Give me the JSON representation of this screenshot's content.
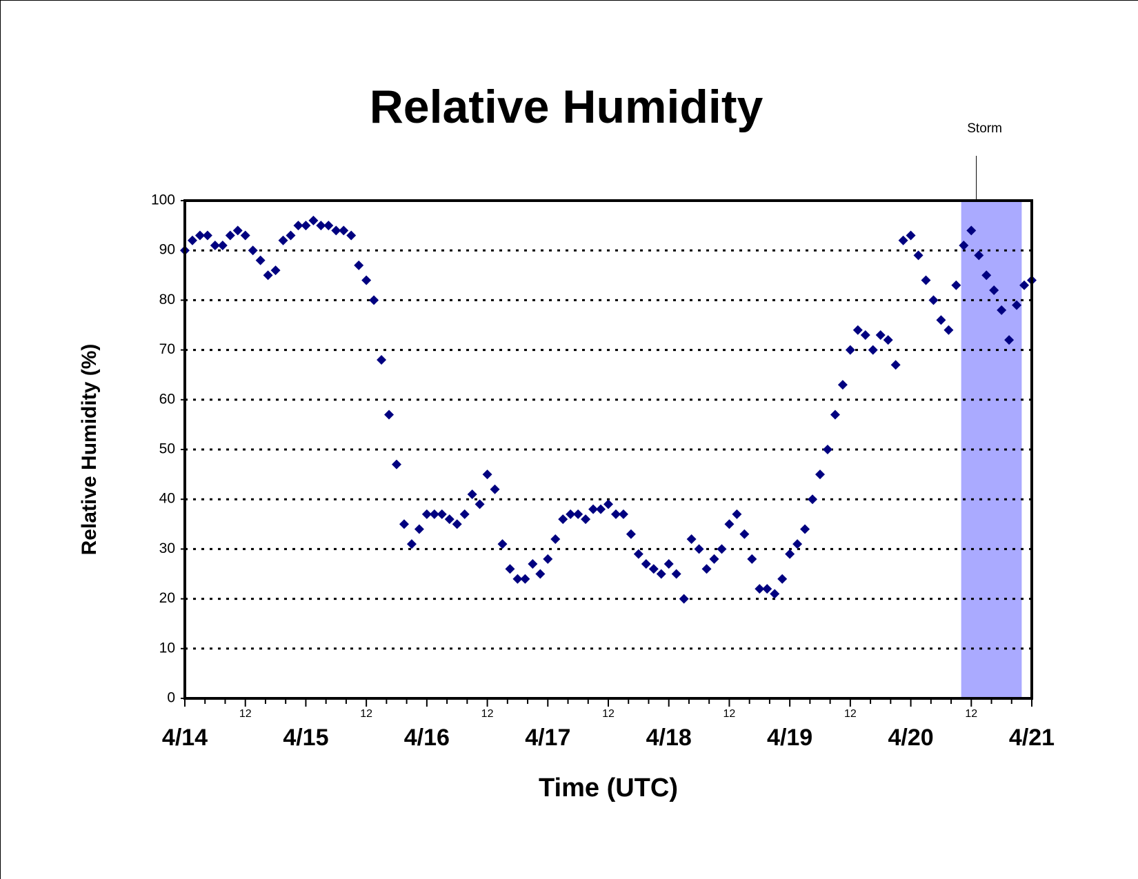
{
  "chart_data": {
    "type": "scatter",
    "title": "Relative Humidity",
    "xlabel": "Time (UTC)",
    "ylabel": "Relative Humidity (%)",
    "color": "#000080",
    "x": [
      0,
      1.5,
      3,
      4.5,
      6,
      7.5,
      9,
      10.5,
      12,
      13.5,
      15,
      16.5,
      18,
      19.5,
      21,
      22.5,
      24,
      25.5,
      27,
      28.5,
      30,
      31.5,
      33,
      34.5,
      36,
      37.5,
      39,
      40.5,
      42,
      43.5,
      45,
      46.5,
      48,
      49.5,
      51,
      52.5,
      54,
      55.5,
      57,
      58.5,
      60,
      61.5,
      63,
      64.5,
      66,
      67.5,
      69,
      70.5,
      72,
      73.5,
      75,
      76.5,
      78,
      79.5,
      81,
      82.5,
      84,
      85.5,
      87,
      88.5,
      90,
      91.5,
      93,
      94.5,
      96,
      97.5,
      99,
      100.5,
      102,
      103.5,
      105,
      106.5,
      108,
      109.5,
      111,
      112.5,
      114,
      115.5,
      117,
      118.5,
      120,
      121.5,
      123,
      124.5,
      126,
      127.5,
      129,
      130.5,
      132,
      133.5,
      135,
      136.5,
      138,
      139.5,
      141,
      142.5,
      144,
      145.5,
      147,
      148.5,
      150,
      151.5,
      153,
      154.5,
      156,
      157.5,
      159,
      160.5,
      162,
      163.5,
      165,
      166.5,
      168
    ],
    "values": [
      90,
      92,
      93,
      93,
      91,
      91,
      93,
      94,
      93,
      90,
      88,
      85,
      86,
      92,
      93,
      95,
      95,
      96,
      95,
      95,
      94,
      94,
      93,
      87,
      84,
      80,
      68,
      57,
      47,
      35,
      31,
      34,
      37,
      37,
      37,
      36,
      35,
      37,
      41,
      39,
      45,
      42,
      31,
      26,
      24,
      24,
      27,
      25,
      28,
      32,
      36,
      37,
      37,
      36,
      38,
      38,
      39,
      37,
      37,
      33,
      29,
      27,
      26,
      25,
      27,
      25,
      20,
      32,
      30,
      26,
      28,
      30,
      35,
      37,
      33,
      28,
      22,
      22,
      21,
      24,
      29,
      31,
      34,
      40,
      45,
      50,
      57,
      63,
      70,
      74,
      73,
      70,
      73,
      72,
      67,
      92,
      93,
      89,
      84,
      80,
      76,
      74,
      83,
      91,
      94,
      89,
      85,
      82,
      78,
      72,
      79,
      83,
      84
    ],
    "xlim": [
      0,
      168
    ],
    "ylim": [
      0,
      100
    ],
    "yticks": [
      0,
      10,
      20,
      30,
      40,
      50,
      60,
      70,
      80,
      90,
      100
    ],
    "xticks": [
      {
        "value": 0,
        "label": "4/14"
      },
      12,
      {
        "value": 24,
        "label": "4/15"
      },
      {
        "value": 36,
        "label": "12"
      },
      {
        "value": 48,
        "label": "4/16"
      },
      {
        "value": 60,
        "label": "12"
      },
      {
        "value": 72,
        "label": "4/17"
      },
      {
        "value": 84,
        "label": "12"
      },
      {
        "value": 96,
        "label": "4/18"
      },
      {
        "value": 108,
        "label": "12"
      },
      {
        "value": 120,
        "label": "4/19"
      },
      {
        "value": 132,
        "label": "12"
      },
      {
        "value": 144,
        "label": "4/20"
      },
      {
        "value": 156,
        "label": "12"
      },
      {
        "value": 168,
        "label": "4/21"
      }
    ],
    "xminor_ticks": [
      4,
      8,
      16,
      20,
      28,
      32,
      40,
      44,
      52,
      56,
      64,
      68,
      76,
      80,
      88,
      92,
      100,
      104,
      112,
      116,
      124,
      128,
      136,
      140,
      148,
      152,
      160,
      164
    ],
    "grid": true,
    "shaded_region": {
      "x": [
        154,
        166
      ],
      "color": "#aaaaff"
    },
    "annotation": {
      "text": "Storm",
      "x": 157
    }
  }
}
